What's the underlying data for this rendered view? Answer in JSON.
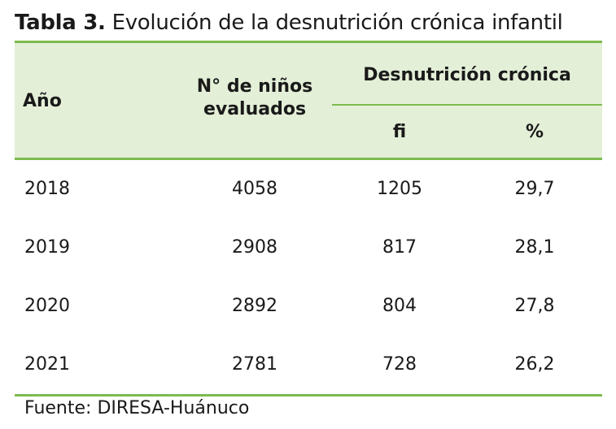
{
  "caption": {
    "label": "Tabla 3.",
    "text": "Evolución de la desnutrición crónica infantil"
  },
  "table": {
    "headers": {
      "year": "Año",
      "count_line1": "N° de niños",
      "count_line2": "evaluados",
      "group": "Desnutrición crónica",
      "fi": "fi",
      "percent": "%"
    },
    "rows": [
      {
        "year": "2018",
        "count": "4058",
        "fi": "1205",
        "percent": "29,7"
      },
      {
        "year": "2019",
        "count": "2908",
        "fi": "817",
        "percent": "28,1"
      },
      {
        "year": "2020",
        "count": "2892",
        "fi": "804",
        "percent": "27,8"
      },
      {
        "year": "2021",
        "count": "2781",
        "fi": "728",
        "percent": "26,2"
      }
    ]
  },
  "source": "Fuente: DIRESA-Huánuco",
  "colors": {
    "header_background": "#e3efd7",
    "rule": "#7dbb4f",
    "text": "#1a1a1a"
  }
}
